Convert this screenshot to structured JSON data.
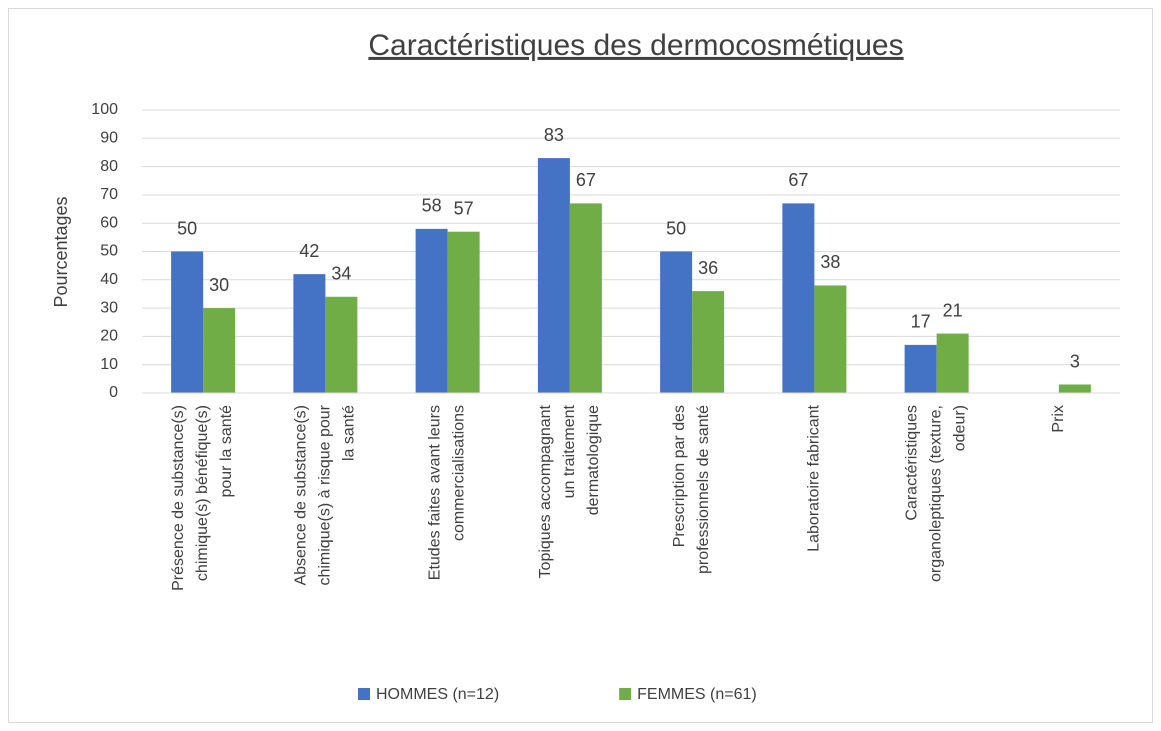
{
  "chart_data": {
    "type": "bar",
    "title": "Caractéristiques des dermocosmétiques",
    "y_label": "Pourcentages",
    "categories": [
      "Présence de substance(s) chimique(s) bénéfique(s) pour la santé",
      "Absence de substance(s) chimique(s) à risque pour la santé",
      "Etudes faites avant leurs commercialisations",
      "Topiques accompagnant un traitement dermatologique",
      "Prescription par des professionnels de santé",
      "Laboratoire fabricant",
      "Caractéristiques organoleptiques (texture, odeur)",
      "Prix"
    ],
    "series": [
      {
        "name": "HOMMES (n=12)",
        "color": "#4472c4",
        "values": [
          50,
          42,
          58,
          83,
          50,
          67,
          17,
          null
        ]
      },
      {
        "name": "FEMMES (n=61)",
        "color": "#70ad47",
        "values": [
          30,
          34,
          57,
          67,
          36,
          38,
          21,
          3
        ]
      }
    ],
    "ylim": [
      0,
      100
    ],
    "yticks": [
      0,
      10,
      20,
      30,
      40,
      50,
      60,
      70,
      80,
      90,
      100
    ],
    "grid": true,
    "legend": "bottom"
  }
}
